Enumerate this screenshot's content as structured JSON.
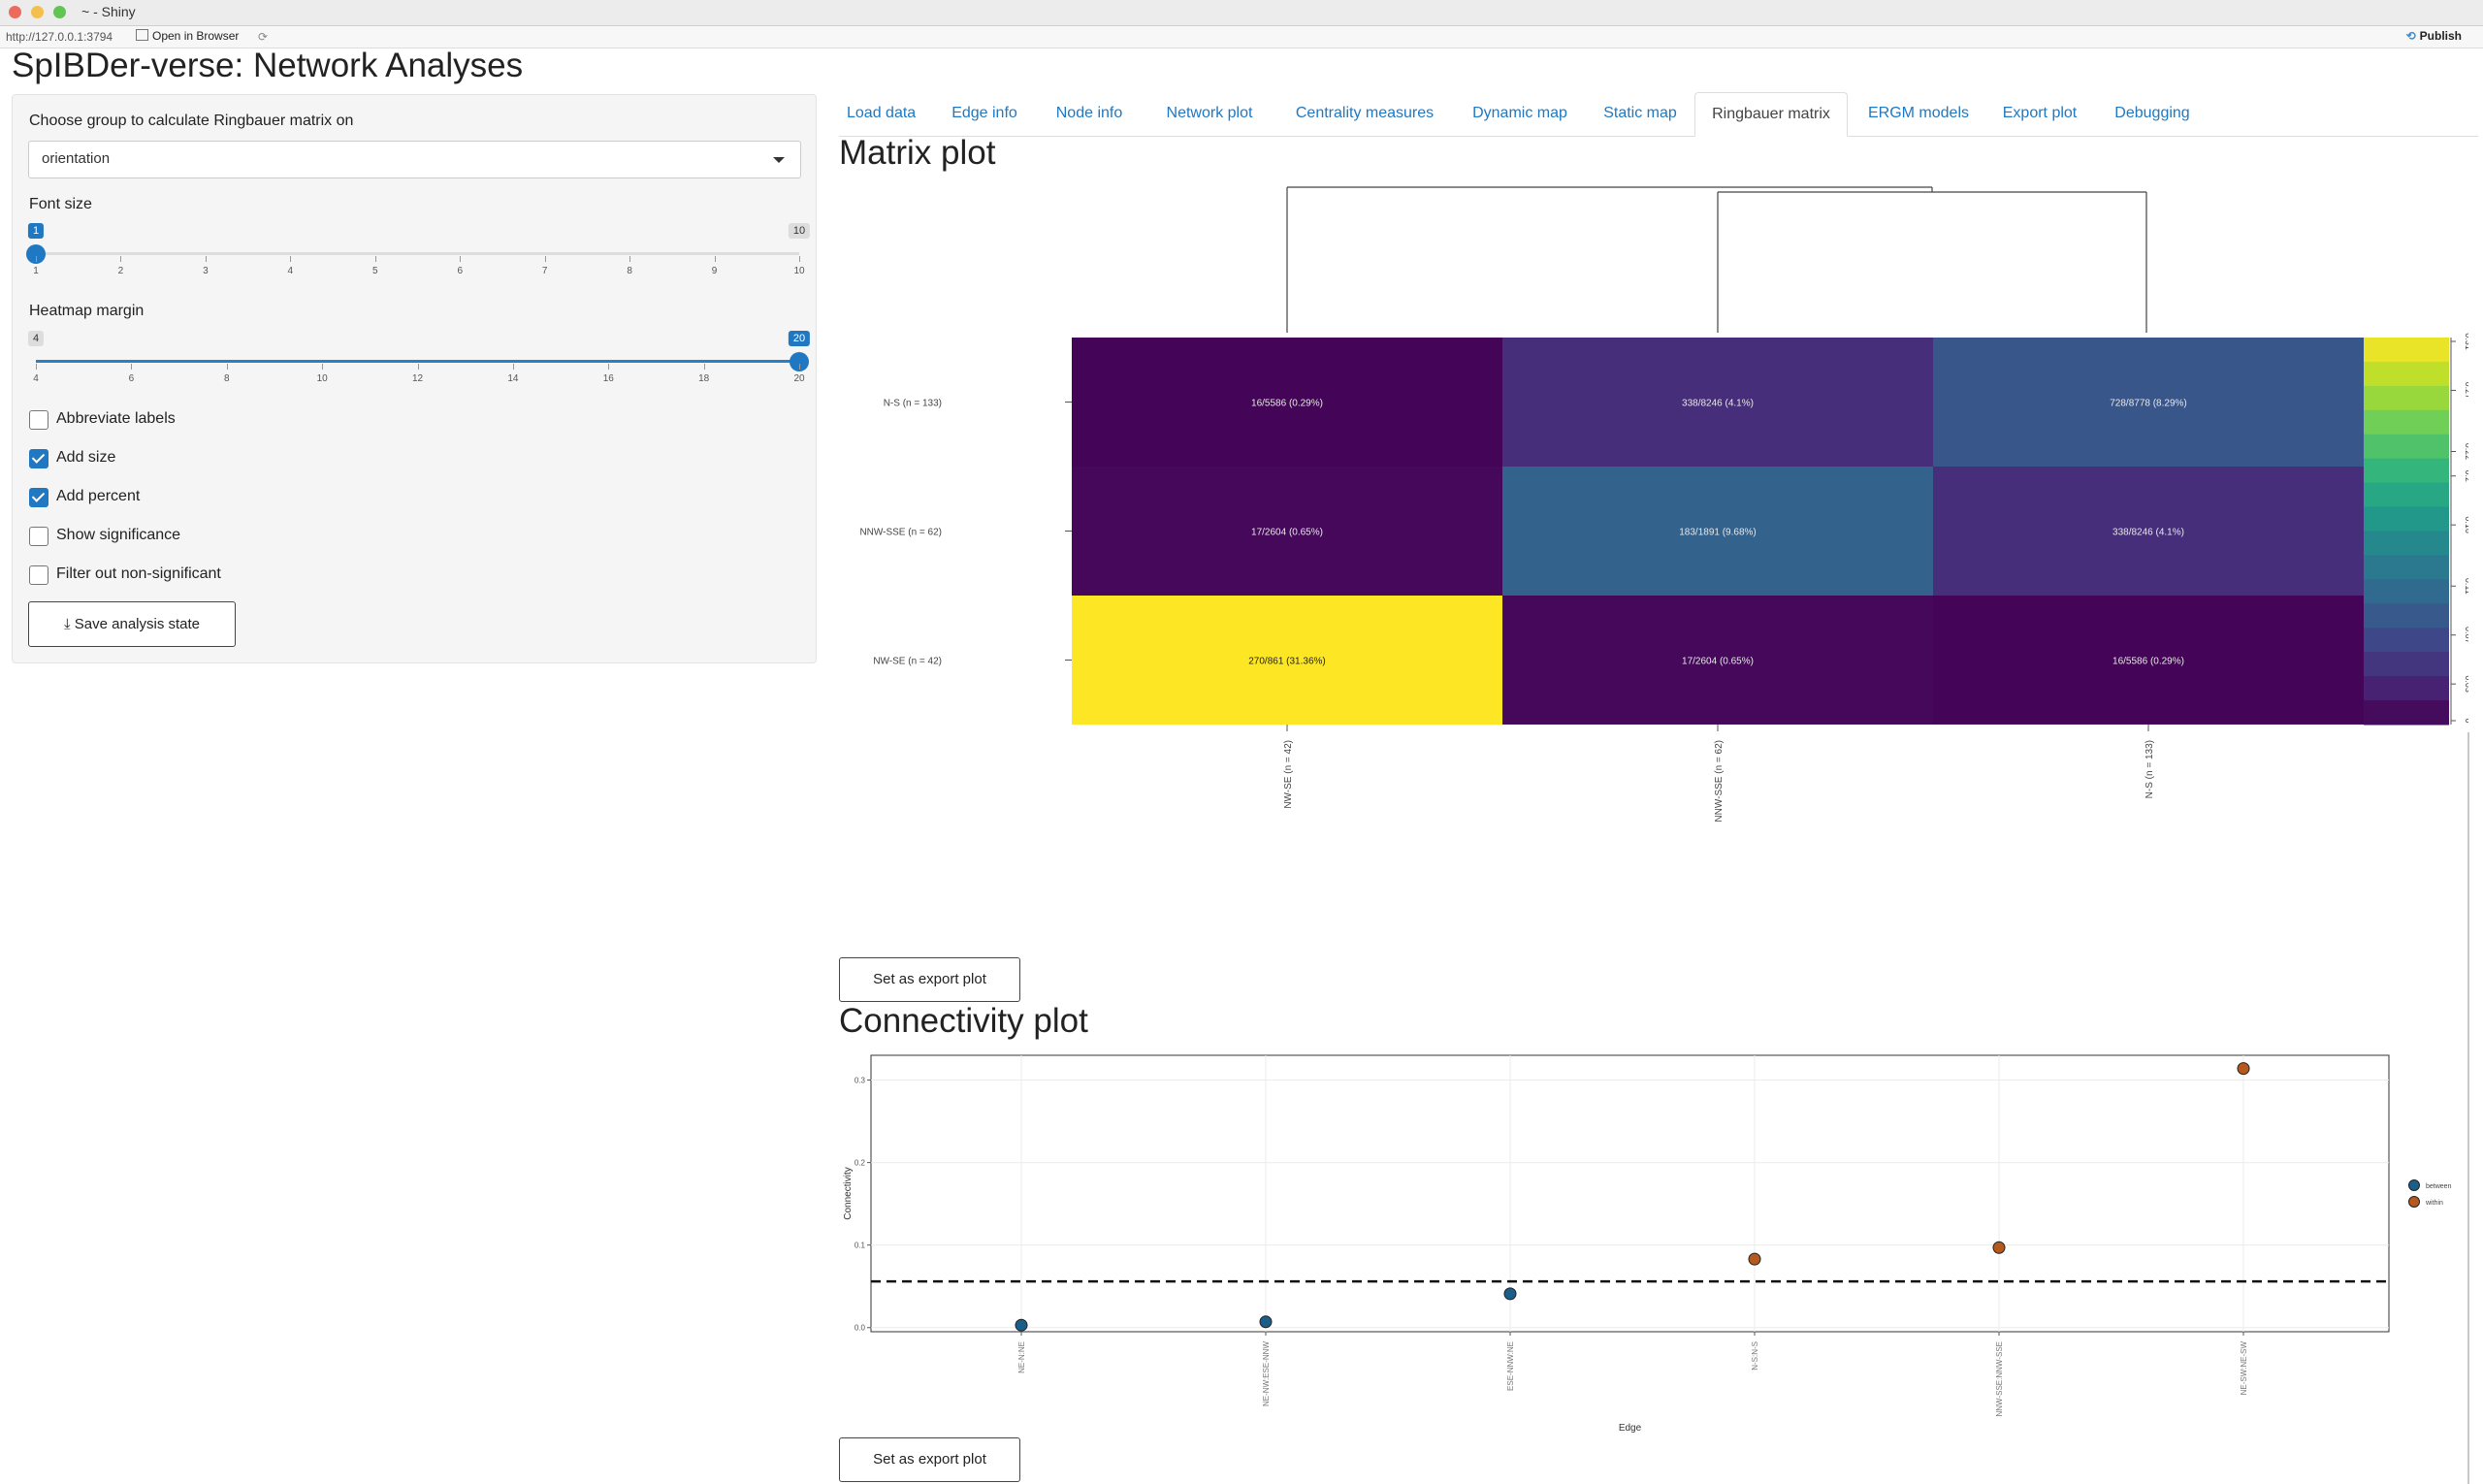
{
  "window": {
    "title": "~ - Shiny",
    "url": "http://127.0.0.1:3794",
    "open_in_browser": "Open in Browser",
    "publish": "Publish"
  },
  "app_title": "SpIBDer-verse: Network Analyses",
  "sidebar": {
    "group_label": "Choose group to calculate Ringbauer matrix on",
    "group_value": "orientation",
    "font_size": {
      "label": "Font size",
      "min": 1,
      "max": 10,
      "value": 1,
      "min_label": "1",
      "max_label": "10",
      "value_label": "1",
      "ticks": [
        "1",
        "2",
        "3",
        "4",
        "5",
        "6",
        "7",
        "8",
        "9",
        "10"
      ]
    },
    "heatmap_margin": {
      "label": "Heatmap margin",
      "min": 4,
      "max": 20,
      "value": 20,
      "min_label": "4",
      "max_label": "20",
      "value_label": "20",
      "ticks": [
        "4",
        "6",
        "8",
        "10",
        "12",
        "14",
        "16",
        "18",
        "20"
      ]
    },
    "checkboxes": [
      {
        "label": "Abbreviate labels",
        "checked": false
      },
      {
        "label": "Add size",
        "checked": true
      },
      {
        "label": "Add percent",
        "checked": true
      },
      {
        "label": "Show significance",
        "checked": false
      },
      {
        "label": "Filter out non-significant",
        "checked": false
      }
    ],
    "save_button": "Save analysis state"
  },
  "tabs": [
    "Load data",
    "Edge info",
    "Node info",
    "Network plot",
    "Centrality measures",
    "Dynamic map",
    "Static map",
    "Ringbauer matrix",
    "ERGM models",
    "Export plot",
    "Debugging"
  ],
  "active_tab": "Ringbauer matrix",
  "matrix_title": "Matrix plot",
  "connectivity_title": "Connectivity plot",
  "export_button": "Set as export plot",
  "chart_data": [
    {
      "type": "heatmap",
      "row_labels": [
        "N-S (n = 133)",
        "NNW-SSE (n = 62)",
        "NW-SE (n = 42)"
      ],
      "col_labels": [
        "NW-SE (n = 42)",
        "NNW-SSE (n = 62)",
        "N-S (n = 133)"
      ],
      "cells": [
        [
          "16/5586 (0.29%)",
          "338/8246 (4.1%)",
          "728/8778 (8.29%)"
        ],
        [
          "17/2604 (0.65%)",
          "183/1891 (9.68%)",
          "338/8246 (4.1%)"
        ],
        [
          "270/861 (31.36%)",
          "17/2604 (0.65%)",
          "16/5586 (0.29%)"
        ]
      ],
      "values": [
        [
          0.0029,
          0.041,
          0.0829
        ],
        [
          0.0065,
          0.0968,
          0.041
        ],
        [
          0.3136,
          0.0065,
          0.0029
        ]
      ],
      "colorbar_ticks": [
        "0",
        "0.03",
        "0.07",
        "0.11",
        "0.16",
        "0.2",
        "0.22",
        "0.27",
        "0.31"
      ],
      "colorbar_range": [
        0,
        0.31
      ],
      "colors": {
        "low": "#440154",
        "high": "#fde725"
      }
    },
    {
      "type": "scatter",
      "xlabel": "Edge",
      "ylabel": "Connectivity",
      "categories": [
        "NE-N:NE",
        "NE-NW:ESE-NNW",
        "ESE-NNW:NE",
        "N-S:N-S",
        "NNW-SSE:NNW-SSE",
        "NE-SW:NE-SW"
      ],
      "points": [
        {
          "category": "NE-N:NE",
          "y": 0.003,
          "series": "between"
        },
        {
          "category": "NE-NW:ESE-NNW",
          "y": 0.007,
          "series": "between"
        },
        {
          "category": "ESE-NNW:NE",
          "y": 0.041,
          "series": "between"
        },
        {
          "category": "N-S:N-S",
          "y": 0.083,
          "series": "within"
        },
        {
          "category": "NNW-SSE:NNW-SSE",
          "y": 0.097,
          "series": "within"
        },
        {
          "category": "NE-SW:NE-SW",
          "y": 0.314,
          "series": "within"
        }
      ],
      "series": [
        {
          "name": "between",
          "color": "#1b5e8a"
        },
        {
          "name": "within",
          "color": "#b5591f"
        }
      ],
      "reference_line": 0.056,
      "y_ticks": [
        "0.0",
        "0.1",
        "0.2",
        "0.3"
      ],
      "ylim": [
        -0.005,
        0.33
      ]
    }
  ]
}
